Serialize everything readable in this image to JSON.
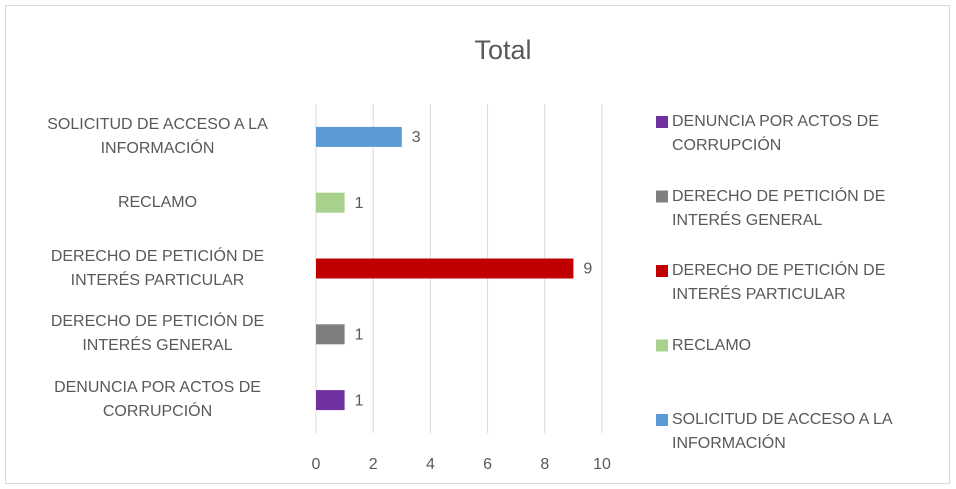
{
  "chart_data": {
    "type": "bar",
    "orientation": "horizontal",
    "title": "Total",
    "categories": [
      "DENUNCIA POR ACTOS DE CORRUPCIÓN",
      "DERECHO DE PETICIÓN DE INTERÉS GENERAL",
      "DERECHO DE PETICIÓN DE INTERÉS PARTICULAR",
      "RECLAMO",
      "SOLICITUD DE ACCESO A LA INFORMACIÓN"
    ],
    "values": [
      1,
      1,
      9,
      1,
      3
    ],
    "colors": [
      "#7030a0",
      "#7f7f7f",
      "#c00000",
      "#a9d18e",
      "#5b9bd5"
    ],
    "xlim": [
      0,
      10
    ],
    "xticks": [
      0,
      2,
      4,
      6,
      8,
      10
    ],
    "grid": true,
    "legend": "right"
  }
}
